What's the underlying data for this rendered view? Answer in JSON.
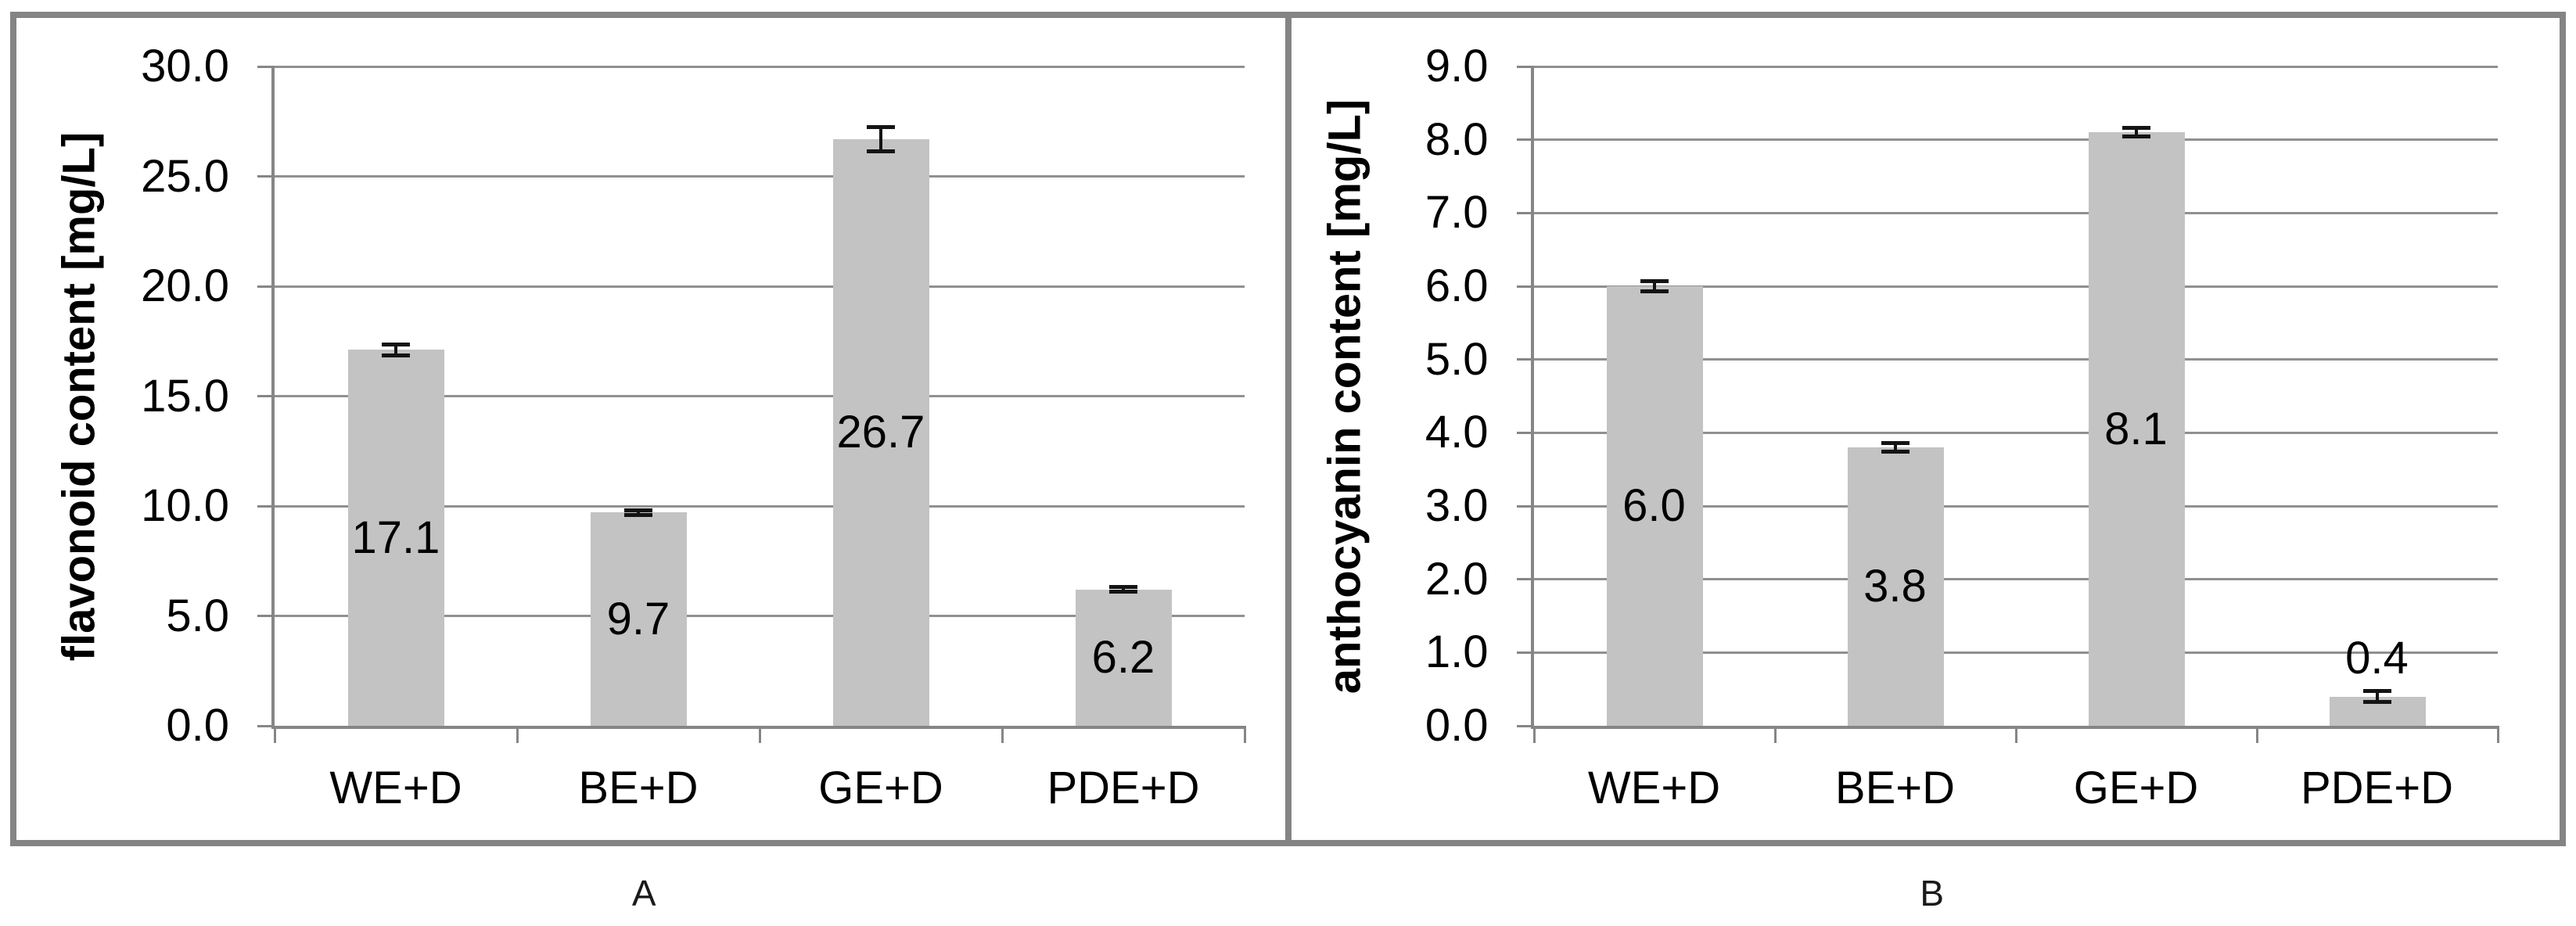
{
  "figure": {
    "captions": [
      "A",
      "B"
    ],
    "colors": {
      "bar_fill": "#c3c3c3",
      "gridline": "#909090",
      "axis": "#868686",
      "panel_border": "#848484",
      "error_bar": "#141414",
      "text": "#000000"
    }
  },
  "chart_data": [
    {
      "type": "bar",
      "panel": "A",
      "title": "",
      "xlabel": "",
      "ylabel": "flavonoid content [mg/L]",
      "categories": [
        "WE+D",
        "BE+D",
        "GE+D",
        "PDE+D"
      ],
      "values": [
        17.1,
        9.7,
        26.7,
        6.2
      ],
      "bar_labels": [
        "17.1",
        "9.7",
        "26.7",
        "6.2"
      ],
      "error_bars": [
        0.25,
        0.1,
        0.55,
        0.1
      ],
      "ylim": [
        0,
        30
      ],
      "ytick_step": 5,
      "ytick_labels": [
        "0.0",
        "5.0",
        "10.0",
        "15.0",
        "20.0",
        "25.0",
        "30.0"
      ],
      "grid": true,
      "legend": false,
      "bar_label_position": [
        "center",
        "center",
        "center",
        "center"
      ]
    },
    {
      "type": "bar",
      "panel": "B",
      "title": "",
      "xlabel": "",
      "ylabel": "anthocyanin content [mg/L]",
      "categories": [
        "WE+D",
        "BE+D",
        "GE+D",
        "PDE+D"
      ],
      "values": [
        6.0,
        3.8,
        8.1,
        0.4
      ],
      "bar_labels": [
        "6.0",
        "3.8",
        "8.1",
        "0.4"
      ],
      "error_bars": [
        0.07,
        0.06,
        0.06,
        0.07
      ],
      "ylim": [
        0,
        9
      ],
      "ytick_step": 1,
      "ytick_labels": [
        "0.0",
        "1.0",
        "2.0",
        "3.0",
        "4.0",
        "5.0",
        "6.0",
        "7.0",
        "8.0",
        "9.0"
      ],
      "grid": true,
      "legend": false,
      "bar_label_position": [
        "center",
        "center",
        "center",
        "above"
      ]
    }
  ]
}
